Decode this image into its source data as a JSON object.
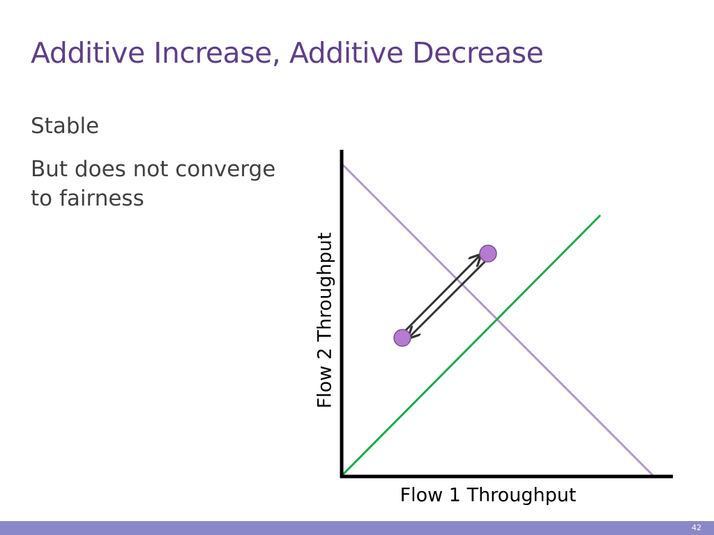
{
  "slide": {
    "title": "Additive Increase, Additive Decrease",
    "bullets": [
      "Stable",
      "But does not converge to fairness"
    ],
    "page_number": "42"
  },
  "diagram": {
    "x_axis_label": "Flow 1 Throughput",
    "y_axis_label": "Flow 2 Throughput",
    "colors": {
      "efficiency_line": "#b497c9",
      "fairness_line": "#1aaa4a",
      "points": "#b57bd0",
      "arrows": "#333333",
      "axes": "#000000",
      "title": "#5f3f86",
      "footer": "#8b88c7"
    }
  }
}
